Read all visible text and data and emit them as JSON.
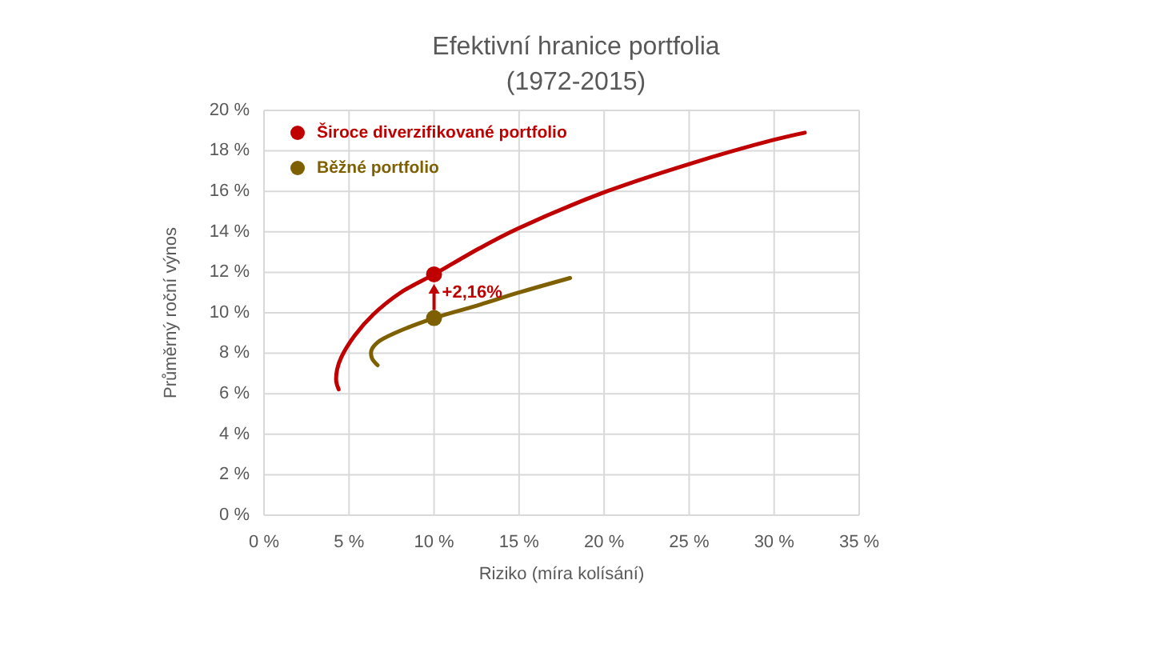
{
  "chart_data": {
    "type": "line",
    "title": "Efektivní hranice portfolia\n(1972-2015)",
    "xlabel": "Riziko (míra kolísání)",
    "ylabel": "Průměrný roční výnos",
    "xlim": [
      0,
      35
    ],
    "ylim": [
      0,
      20
    ],
    "xticks": [
      {
        "value": 0,
        "label": "0 %"
      },
      {
        "value": 5,
        "label": "5 %"
      },
      {
        "value": 10,
        "label": "10 %"
      },
      {
        "value": 15,
        "label": "15 %"
      },
      {
        "value": 20,
        "label": "20 %"
      },
      {
        "value": 25,
        "label": "25 %"
      },
      {
        "value": 30,
        "label": "30 %"
      },
      {
        "value": 35,
        "label": "35 %"
      }
    ],
    "yticks": [
      {
        "value": 0,
        "label": "0 %"
      },
      {
        "value": 2,
        "label": "2 %"
      },
      {
        "value": 4,
        "label": "4 %"
      },
      {
        "value": 6,
        "label": "6 %"
      },
      {
        "value": 8,
        "label": "8 %"
      },
      {
        "value": 10,
        "label": "10 %"
      },
      {
        "value": 12,
        "label": "12 %"
      },
      {
        "value": 14,
        "label": "14 %"
      },
      {
        "value": 16,
        "label": "16 %"
      },
      {
        "value": 18,
        "label": "18 %"
      },
      {
        "value": 20,
        "label": "20 %"
      }
    ],
    "grid": true,
    "legend": "top left",
    "series": [
      {
        "color": "#c00000",
        "x": [
          4.39,
          4.25,
          4.3,
          4.55,
          5.33,
          6.43,
          8.0,
          10.0,
          12.7,
          14.9,
          20.0,
          25.0,
          30.0,
          31.8
        ],
        "values": [
          6.22,
          6.6,
          7.2,
          7.81,
          8.87,
          9.92,
          10.98,
          11.9,
          13.2,
          14.15,
          15.95,
          17.35,
          18.55,
          18.9
        ]
      },
      {
        "color": "#7f6000",
        "x": [
          6.68,
          6.35,
          6.32,
          6.7,
          7.7,
          10.0,
          12.7,
          14.9,
          18.0
        ],
        "values": [
          7.41,
          7.75,
          8.15,
          8.55,
          9.0,
          9.74,
          10.4,
          10.98,
          11.72
        ]
      },
      {
        "type": "scatter",
        "name": "Široce diverzifikované portfolio",
        "color": "#c00000",
        "marker": "circle",
        "x": [
          10.0
        ],
        "values": [
          11.9
        ]
      },
      {
        "type": "scatter",
        "name": "Běžné portfolio",
        "color": "#7f6000",
        "marker": "circle",
        "x": [
          10.0
        ],
        "values": [
          9.74
        ]
      }
    ],
    "annotations": [
      {
        "text": "+2,16%",
        "x": 10,
        "y": 11.9
      }
    ]
  }
}
